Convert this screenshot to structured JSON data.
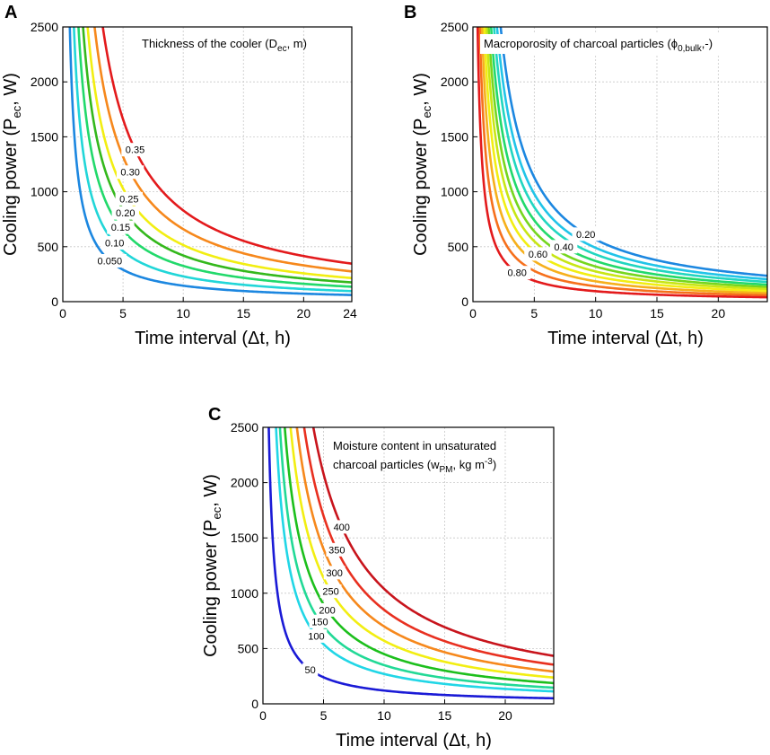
{
  "chart_data": [
    {
      "type": "line",
      "panel": "A",
      "annotation": {
        "prefix": "Thickness of the cooler (D",
        "sub": "ec",
        "suffix": ", m)"
      },
      "xlabel": "Time interval (Δt, h)",
      "ylabel": {
        "prefix": "Cooling power (P",
        "sub": "ec",
        "suffix": ", W)"
      },
      "xlim": [
        0,
        24
      ],
      "ylim": [
        0,
        2500
      ],
      "xticks": [
        0,
        5,
        10,
        15,
        20
      ],
      "yticks": [
        0,
        500,
        1000,
        1500,
        2000,
        2500
      ],
      "grid": true,
      "x_max_label": 24,
      "series": [
        {
          "name": "0.050",
          "color": "#1c87e0",
          "k": 1450,
          "label_x": 3.9
        },
        {
          "name": "0.10",
          "color": "#21d6d8",
          "k": 2300,
          "label_x": 4.3
        },
        {
          "name": "0.15",
          "color": "#22d96b",
          "k": 3250,
          "label_x": 4.8
        },
        {
          "name": "0.20",
          "color": "#34b81c",
          "k": 4200,
          "label_x": 5.2
        },
        {
          "name": "0.25",
          "color": "#f2ee12",
          "k": 5150,
          "label_x": 5.5
        },
        {
          "name": "0.30",
          "color": "#f6881c",
          "k": 6600,
          "label_x": 5.6
        },
        {
          "name": "0.35",
          "color": "#e31a1c",
          "k": 8300,
          "label_x": 6.0
        }
      ]
    },
    {
      "type": "line",
      "panel": "B",
      "annotation": {
        "prefix": "Macroporosity of charcoal particles (ϕ",
        "sub": "0,bulk",
        "suffix": ",-)"
      },
      "xlabel": "Time interval (Δt, h)",
      "ylabel": {
        "prefix": "Cooling power (P",
        "sub": "ec",
        "suffix": ", W)"
      },
      "xlim": [
        0,
        24
      ],
      "ylim": [
        0,
        2500
      ],
      "xticks": [
        0,
        5,
        10,
        15,
        20
      ],
      "yticks": [
        0,
        500,
        1000,
        1500,
        2000,
        2500
      ],
      "grid": true,
      "series": [
        {
          "name": "0.20",
          "color": "#1c87e0",
          "k": 5650,
          "label_x": 9.2
        },
        {
          "name": "",
          "color": "#21c4e8",
          "k": 4900
        },
        {
          "name": "",
          "color": "#21d6c0",
          "k": 4300
        },
        {
          "name": "0.40",
          "color": "#22d96b",
          "k": 3700,
          "label_x": 7.4
        },
        {
          "name": "",
          "color": "#76d61e",
          "k": 3200
        },
        {
          "name": "",
          "color": "#c8e615",
          "k": 2750
        },
        {
          "name": "0.60",
          "color": "#f2ee12",
          "k": 2300,
          "label_x": 5.3
        },
        {
          "name": "",
          "color": "#f6b01c",
          "k": 1850
        },
        {
          "name": "",
          "color": "#f6701c",
          "k": 1400
        },
        {
          "name": "0.80",
          "color": "#e31a1c",
          "k": 950,
          "label_x": 3.6
        }
      ]
    },
    {
      "type": "line",
      "panel": "C",
      "annotation": {
        "line1": "Moisture content in unsaturated",
        "prefix": "charcoal particles (w",
        "sub": "PM",
        "suffix": ", kg m",
        "sup": "-3",
        "suffix2": ")"
      },
      "xlabel": "Time interval (Δt, h)",
      "ylabel": {
        "prefix": "Cooling power (P",
        "sub": "ec",
        "suffix": ", W)"
      },
      "xlim": [
        0,
        24
      ],
      "ylim": [
        0,
        2500
      ],
      "xticks": [
        0,
        5,
        10,
        15,
        20
      ],
      "yticks": [
        0,
        500,
        1000,
        1500,
        2000,
        2500
      ],
      "grid": true,
      "series": [
        {
          "name": "50",
          "color": "#1a1ad6",
          "k": 1200,
          "label_x": 3.9
        },
        {
          "name": "100",
          "color": "#21d6e6",
          "k": 2700,
          "label_x": 4.4
        },
        {
          "name": "150",
          "color": "#22d996",
          "k": 3500,
          "label_x": 4.7
        },
        {
          "name": "200",
          "color": "#1cbf1c",
          "k": 4500,
          "label_x": 5.3
        },
        {
          "name": "250",
          "color": "#f2ee12",
          "k": 5700,
          "label_x": 5.6
        },
        {
          "name": "300",
          "color": "#f6881c",
          "k": 7000,
          "label_x": 5.9
        },
        {
          "name": "350",
          "color": "#e83020",
          "k": 8500,
          "label_x": 6.1
        },
        {
          "name": "400",
          "color": "#c8141c",
          "k": 10400,
          "label_x": 6.5
        }
      ]
    }
  ]
}
